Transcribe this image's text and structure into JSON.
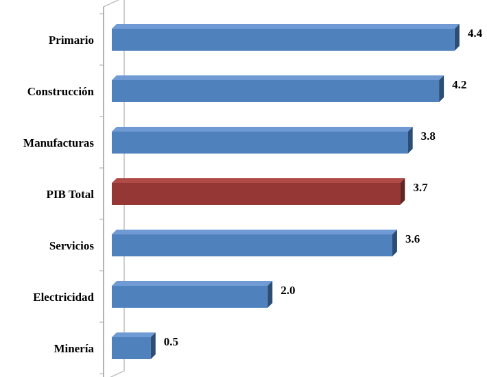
{
  "chart_data": {
    "type": "bar",
    "orientation": "horizontal",
    "style": "3d",
    "categories": [
      "Primario",
      "Construcción",
      "Manufacturas",
      "PIB Total",
      "Servicios",
      "Electricidad",
      "Minería"
    ],
    "values": [
      4.4,
      4.2,
      3.8,
      3.7,
      3.6,
      2.0,
      0.5
    ],
    "value_labels": [
      "4.4",
      "4.2",
      "3.8",
      "3.7",
      "3.6",
      "2.0",
      "0.5"
    ],
    "highlight": "PIB Total",
    "xlim": [
      0,
      4.4
    ],
    "grid": false,
    "title": "",
    "xlabel": "",
    "ylabel": "",
    "colors": {
      "default_front": "#4f81bd",
      "default_top": "#6f9ad4",
      "default_side": "#2c4d75",
      "highlight_front": "#953735",
      "highlight_top": "#b04a47",
      "highlight_side": "#632523",
      "axis_wall": "#bfbfbf"
    }
  }
}
